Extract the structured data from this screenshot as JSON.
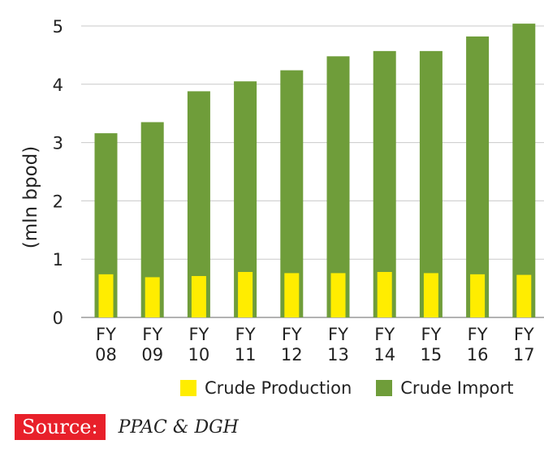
{
  "chart_data": {
    "type": "bar",
    "stacked": true,
    "categories": [
      [
        "FY",
        "08"
      ],
      [
        "FY",
        "09"
      ],
      [
        "FY",
        "10"
      ],
      [
        "FY",
        "11"
      ],
      [
        "FY",
        "12"
      ],
      [
        "FY",
        "13"
      ],
      [
        "FY",
        "14"
      ],
      [
        "FY",
        "15"
      ],
      [
        "FY",
        "16"
      ],
      [
        "FY",
        "17"
      ]
    ],
    "series": [
      {
        "name": "Crude Production",
        "color": "#ffed00",
        "values": [
          0.74,
          0.69,
          0.71,
          0.78,
          0.76,
          0.76,
          0.78,
          0.76,
          0.74,
          0.73
        ]
      },
      {
        "name": "Crude Import",
        "color": "#6f9d3a",
        "values": [
          2.42,
          2.66,
          3.17,
          3.27,
          3.48,
          3.72,
          3.79,
          3.81,
          4.08,
          4.31
        ]
      }
    ],
    "totals": [
      3.16,
      3.35,
      3.88,
      4.05,
      4.24,
      4.48,
      4.57,
      4.57,
      4.82,
      5.04
    ],
    "ylabel": "(mln bpod)",
    "ylim": [
      0,
      5
    ],
    "yticks": [
      0,
      1,
      2,
      3,
      4,
      5
    ],
    "grid": true,
    "legend_position": "bottom-right"
  },
  "legend": {
    "production_label": "Crude Production",
    "import_label": "Crude Import"
  },
  "source": {
    "label": "Source:",
    "text": "PPAC & DGH"
  }
}
